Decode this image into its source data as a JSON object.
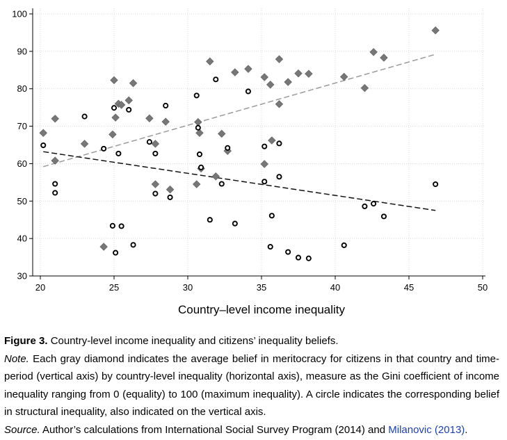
{
  "chart_data": {
    "type": "scatter",
    "xlabel": "Country–level income inequality",
    "ylabel": "",
    "xlim": [
      20,
      50
    ],
    "ylim": [
      30,
      100
    ],
    "xticks": [
      "20",
      "25",
      "30",
      "35",
      "40",
      "45",
      "50"
    ],
    "yticks": [
      "30",
      "40",
      "50",
      "60",
      "70",
      "80",
      "90",
      "100"
    ],
    "grid": true,
    "series": [
      {
        "marker": "diamond",
        "color": "#777777",
        "points": [
          [
            20.2,
            68.2
          ],
          [
            21.0,
            72.0
          ],
          [
            21.0,
            60.8
          ],
          [
            23.0,
            65.3
          ],
          [
            24.3,
            37.8
          ],
          [
            24.9,
            67.8
          ],
          [
            25.0,
            82.3
          ],
          [
            25.1,
            72.3
          ],
          [
            25.3,
            76.0
          ],
          [
            25.5,
            75.7
          ],
          [
            26.0,
            76.9
          ],
          [
            26.3,
            81.5
          ],
          [
            27.4,
            72.1
          ],
          [
            27.8,
            65.3
          ],
          [
            27.8,
            54.5
          ],
          [
            28.5,
            71.2
          ],
          [
            28.8,
            53.1
          ],
          [
            30.6,
            54.5
          ],
          [
            30.7,
            71.1
          ],
          [
            30.8,
            68.2
          ],
          [
            30.9,
            58.7
          ],
          [
            31.5,
            87.3
          ],
          [
            31.9,
            56.6
          ],
          [
            32.3,
            68.0
          ],
          [
            32.7,
            63.4
          ],
          [
            33.2,
            84.4
          ],
          [
            34.1,
            85.3
          ],
          [
            35.2,
            83.1
          ],
          [
            35.2,
            59.9
          ],
          [
            35.6,
            81.1
          ],
          [
            35.7,
            66.2
          ],
          [
            36.2,
            87.9
          ],
          [
            36.2,
            75.9
          ],
          [
            36.8,
            81.8
          ],
          [
            37.5,
            84.1
          ],
          [
            38.2,
            84.0
          ],
          [
            40.6,
            83.2
          ],
          [
            42.0,
            80.2
          ],
          [
            42.6,
            89.8
          ],
          [
            43.3,
            88.3
          ],
          [
            46.8,
            95.6
          ]
        ]
      },
      {
        "marker": "circle",
        "color": "#000000",
        "points": [
          [
            20.2,
            64.9
          ],
          [
            21.0,
            54.6
          ],
          [
            21.0,
            52.2
          ],
          [
            23.0,
            72.6
          ],
          [
            24.3,
            64.0
          ],
          [
            24.9,
            43.4
          ],
          [
            25.0,
            74.9
          ],
          [
            25.1,
            36.2
          ],
          [
            25.3,
            62.7
          ],
          [
            25.5,
            43.3
          ],
          [
            26.0,
            74.4
          ],
          [
            26.3,
            38.3
          ],
          [
            27.4,
            65.8
          ],
          [
            27.8,
            62.7
          ],
          [
            27.8,
            52.0
          ],
          [
            28.5,
            75.5
          ],
          [
            28.8,
            51.0
          ],
          [
            30.6,
            78.2
          ],
          [
            30.7,
            69.6
          ],
          [
            30.8,
            62.5
          ],
          [
            30.9,
            59.0
          ],
          [
            31.5,
            45.0
          ],
          [
            31.9,
            82.5
          ],
          [
            32.3,
            54.6
          ],
          [
            32.7,
            64.2
          ],
          [
            33.2,
            44.0
          ],
          [
            34.1,
            79.3
          ],
          [
            35.2,
            64.6
          ],
          [
            35.2,
            55.2
          ],
          [
            35.6,
            37.8
          ],
          [
            35.7,
            46.1
          ],
          [
            36.2,
            65.4
          ],
          [
            36.2,
            56.5
          ],
          [
            36.8,
            36.4
          ],
          [
            37.5,
            34.9
          ],
          [
            38.2,
            34.7
          ],
          [
            40.6,
            38.2
          ],
          [
            42.0,
            48.6
          ],
          [
            42.6,
            49.3
          ],
          [
            43.3,
            45.9
          ],
          [
            46.8,
            54.5
          ]
        ]
      }
    ],
    "fit_lines": [
      {
        "color": "#9a9a9a",
        "x": [
          20.2,
          46.8
        ],
        "y": [
          59.2,
          89.2
        ]
      },
      {
        "color": "#111111",
        "x": [
          20.2,
          46.8
        ],
        "y": [
          63.2,
          47.5
        ]
      }
    ]
  },
  "caption": {
    "figure_label": "Figure 3.",
    "figure_title": "Country-level income inequality and citizens’ inequality beliefs.",
    "note_label": "Note.",
    "note_text": "Each gray diamond indicates the average belief in meritocracy for citizens in that country and time-period (vertical axis) by country-level inequality (horizontal axis), measure as the Gini coefficient of income inequality ranging from 0 (equality) to 100 (maximum inequality). A circle indicates the corresponding belief in structural inequality, also indicated on the vertical axis.",
    "source_label": "Source.",
    "source_text": "Author’s calculations from International Social Survey Program (2014) and ",
    "source_link": "Milanovic (2013)",
    "source_end": "."
  }
}
